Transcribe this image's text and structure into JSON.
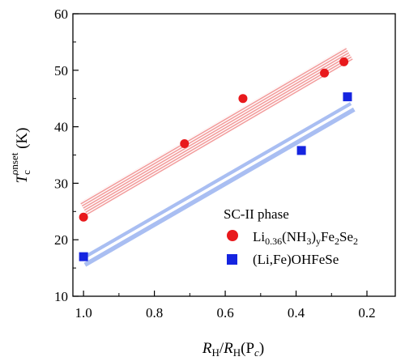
{
  "chart_data": {
    "type": "scatter",
    "xlabel": {
      "main": "R",
      "sub1": "H",
      "slash": "/",
      "main2": "R",
      "sub2": "H",
      "rest": "(P",
      "sub3": "c",
      "close": ")"
    },
    "ylabel": {
      "main": "T",
      "sub": "c",
      "sup": "onset",
      "unit": " (K)"
    },
    "xlim": [
      1.03,
      0.12
    ],
    "ylim": [
      10,
      60
    ],
    "x_ticks": [
      1.0,
      0.8,
      0.6,
      0.4,
      0.2
    ],
    "x_tick_labels": [
      "1.0",
      "0.8",
      "0.6",
      "0.4",
      "0.2"
    ],
    "y_ticks": [
      10,
      20,
      30,
      40,
      50,
      60
    ],
    "y_tick_labels": [
      "10",
      "20",
      "30",
      "40",
      "50",
      "60"
    ],
    "legend": {
      "title": "SC-II phase",
      "placement": "lower-right",
      "entries": [
        {
          "series": 0,
          "parts": [
            "Li",
            "0.36",
            "(NH",
            "3",
            ")",
            "y",
            "Fe",
            "2",
            "Se",
            "2"
          ]
        },
        {
          "series": 1,
          "parts": [
            "(Li,Fe)OHFeSe"
          ]
        }
      ]
    },
    "series": [
      {
        "marker": "circle",
        "color": "#e8191c",
        "band_color": "#f29c9c",
        "x": [
          1.0,
          0.715,
          0.55,
          0.32,
          0.265
        ],
        "y": [
          24.0,
          37.0,
          45.0,
          49.5,
          51.5
        ],
        "trend": {
          "x": [
            1.0,
            0.25
          ],
          "y": [
            25.5,
            53.0
          ]
        }
      },
      {
        "marker": "square",
        "color": "#1524e0",
        "band_color": "#9fb6f0",
        "x": [
          1.0,
          0.385,
          0.255
        ],
        "y": [
          17.0,
          35.8,
          45.3
        ],
        "trend": {
          "x": [
            1.0,
            0.24
          ],
          "y": [
            16.0,
            43.5
          ]
        }
      }
    ]
  }
}
